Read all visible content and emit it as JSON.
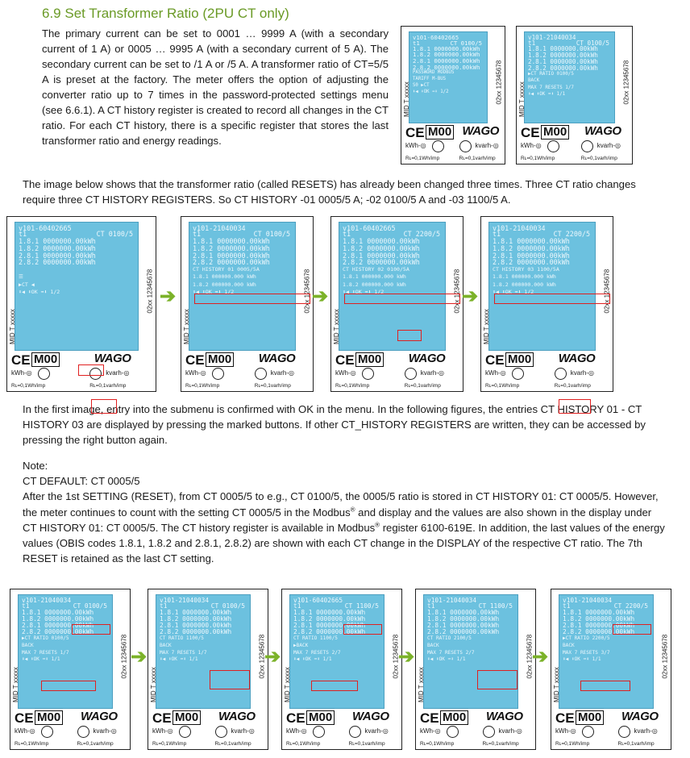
{
  "heading": "6.9 Set Transformer Ratio (2PU CT only)",
  "intro": "The primary current can be set to 0001 … 9999 A (with a secondary current of 1 A) or 0005 … 9995 A (with a secondary current of 5 A). The secondary current can be set to /1 A or /5 A. A transformer ratio of CT=5/5 A is preset at the factory. The meter offers the option of adjusting the converter ratio up to 7 times in the password-protected settings menu (see 6.6.1). A CT history register is created to record all changes in the CT ratio. For each CT history, there is a specific register that stores the last transformer ratio and energy readings.",
  "para2": "The image below shows that the transformer ratio (called RESETS) has already been changed three times. Three CT ratio changes require three CT HISTORY REGISTERS. So CT HISTORY -01 0005/5 A; -02 0100/5 A and -03 1100/5 A.",
  "para3": "In the first image, entry into the submenu is confirmed with OK in the menu. In the following figures, the entries CT HISTORY 01 - CT HISTORY 03 are displayed by pressing the marked buttons. If other CT_HISTORY REGISTERS are written, they can be accessed by pressing the right button again.",
  "note_label": "Note:",
  "note_default": "CT DEFAULT: CT 0005/5",
  "note_body_a": "After the 1st SETTING (RESET), from CT 0005/5 to e.g., CT 0100/5, the 0005/5 ratio is stored in CT HISTORY 01: CT 0005/5. However, the meter continues to count with the setting CT 0005/5 in the Modbus",
  "note_body_b": " and display and the values are also shown in the display under CT HISTORY 01: CT 0005/5. The CT history register is available in Modbus",
  "note_body_c": " register 6100-619E. In addition, the last values of the energy values (OBIS codes 1.8.1, 1.8.2 and 2.8.1, 2.8.2) are shown with each CT change in the DISPLAY of the respective CT ratio. The 7th RESET is retained as the last CT setting.",
  "reg_mark": "®",
  "meter_common": {
    "mid": "MID T xxxxx",
    "serial": "02xx 12345678",
    "ce": "CE",
    "m00": "M00",
    "wago": "WAGO",
    "kwh": "kWh-◎",
    "kvarh": "kvarh-◎",
    "rl": "Rʟ=0,1Wh/imp",
    "rr": "Rʟ=0,1varh/imp",
    "rows": [
      "1.8.1 0000000.00kWh",
      "1.8.2 0000000.00kWh",
      "2.8.1 0000000.00kWh",
      "2.8.2 0000000.00kWh"
    ],
    "t1": "t1",
    "ok_row": "⬇OK ➡⬇ 1/2"
  },
  "meters_top": [
    {
      "id": "v101-60402665",
      "ct": "CT 0100/5",
      "lines": [
        "PASSWORD    MODBUS",
        "TARIFF       M-BUS",
        "S0            ▶CT",
        "⬇◀      ⬇OK ➡⬇ 1/2"
      ]
    },
    {
      "id": "v101-21040034",
      "ct": "CT 0100/5",
      "lines": [
        "▶CT RATIO    0100/5",
        "BACK",
        "MAX 7 RESETS 1/7",
        "⬇◀      ⬇OK ➡⬇ 1/1"
      ]
    }
  ],
  "meters_mid": [
    {
      "id": "v101-60402665",
      "ct": "CT 0100/5",
      "lines": [
        "",
        "☰",
        "▶CT          ◀",
        "⬇◀     ⬇OK ➡⬇ 1/2"
      ]
    },
    {
      "id": "v101-21040034",
      "ct": "CT 0100/5",
      "lines": [
        "CT HISTORY 01 0005/5A",
        "1.8.1 000000.000 kWh",
        "1.8.2 000000.000 kWh",
        "⬇◀     ⬇OK ➡⬇ 1/2"
      ]
    },
    {
      "id": "v101-60402665",
      "ct": "CT 2200/5",
      "lines": [
        "CT HISTORY 02 0100/5A",
        "1.8.1 000000.000 kWh",
        "1.8.2 000000.000 kWh",
        "⬇◀     ⬇OK ➡⬇ 1/2"
      ]
    },
    {
      "id": "v101-21040034",
      "ct": "CT 2200/5",
      "lines": [
        "CT HISTORY 03 1100/5A",
        "1.8.1 000000.000 kWh",
        "1.8.2 000000.000 kWh",
        "⬇◀     ⬇OK ➡⬇ 1/2"
      ]
    }
  ],
  "meters_bottom": [
    {
      "id": "v101-21040034",
      "ct": "CT 0100/5",
      "lines": [
        "▶CT RATIO    0100/5",
        "BACK",
        "MAX 7 RESETS 1/7",
        "⬇◀     ⬇OK ➡⬇ 1/1"
      ]
    },
    {
      "id": "v101-21040034",
      "ct": "CT 0100/5",
      "lines": [
        "CT RATIO    1100/5",
        "BACK",
        "MAX 7 RESETS 1/7",
        "⬇◀     ⬇OK ➡⬇ 1/1"
      ]
    },
    {
      "id": "v101-60402665",
      "ct": "CT 1100/5",
      "lines": [
        "CT RATIO    1100/5",
        "▶BACK",
        "MAX 7 RESETS 2/7",
        "⬇◀     ⬇OK ➡⬇ 1/1"
      ]
    },
    {
      "id": "v101-21040034",
      "ct": "CT 1100/5",
      "lines": [
        "CT RATIO    2100/5",
        "BACK",
        "MAX 7 RESETS 2/7",
        "⬇◀     ⬇OK ➡⬇ 1/1"
      ]
    },
    {
      "id": "v101-21040034",
      "ct": "CT 2200/5",
      "lines": [
        "▶CT RATIO    2200/5",
        "BACK",
        "MAX 7 RESETS 3/7",
        "⬇◀     ⬇OK ➡⬇ 1/1"
      ]
    }
  ],
  "arrow_glyph": "➔"
}
